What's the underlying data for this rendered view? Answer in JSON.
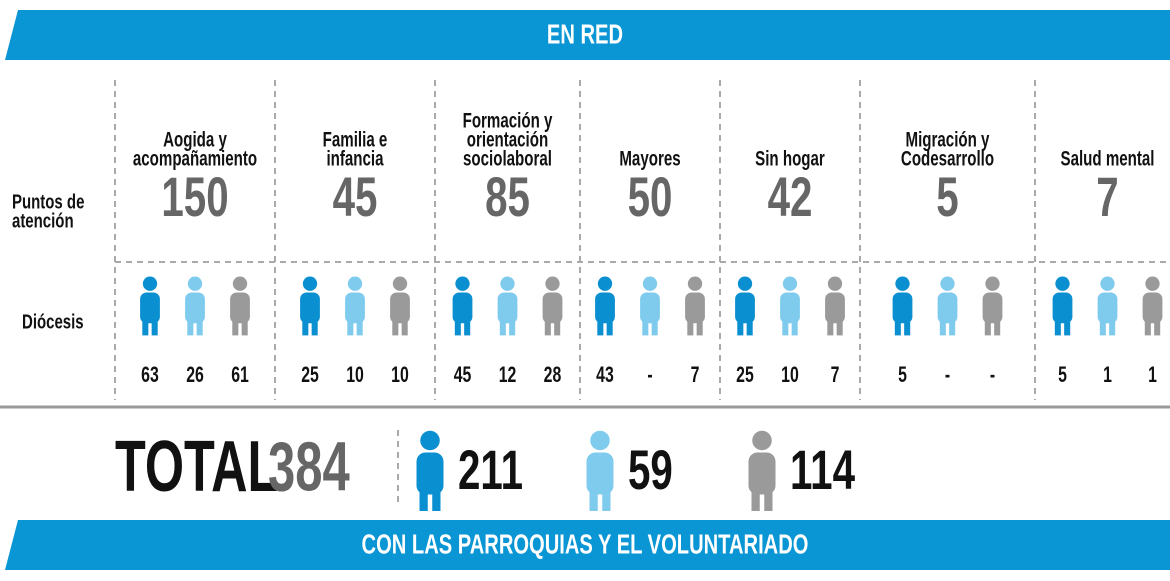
{
  "header": {
    "title": "EN RED"
  },
  "row_labels": {
    "puntos": [
      "Puntos de",
      "atención"
    ],
    "diocesis": "Diócesis"
  },
  "columns": [
    {
      "label": [
        "Aogida y",
        "acompañamiento"
      ],
      "puntos": 150,
      "diocesis": [
        63,
        26,
        61
      ]
    },
    {
      "label": [
        "Familia e",
        "infancia"
      ],
      "puntos": 45,
      "diocesis": [
        25,
        10,
        10
      ]
    },
    {
      "label": [
        "Formación y",
        "orientación",
        "sociolaboral"
      ],
      "puntos": 85,
      "diocesis": [
        45,
        12,
        28
      ]
    },
    {
      "label": [
        "Mayores"
      ],
      "puntos": 50,
      "diocesis": [
        43,
        "-",
        7
      ]
    },
    {
      "label": [
        "Sin hogar"
      ],
      "puntos": 42,
      "diocesis": [
        25,
        10,
        7
      ]
    },
    {
      "label": [
        "Migración y",
        "Codesarrollo"
      ],
      "puntos": 5,
      "diocesis": [
        5,
        "-",
        "-"
      ]
    },
    {
      "label": [
        "Salud mental"
      ],
      "puntos": 7,
      "diocesis": [
        5,
        1,
        1
      ]
    }
  ],
  "total": {
    "label": "TOTAL",
    "value": 384,
    "breakdown": [
      211,
      59,
      114
    ]
  },
  "footer": {
    "title": "CON LAS PARROQUIAS Y EL VOLUNTARIADO"
  }
}
